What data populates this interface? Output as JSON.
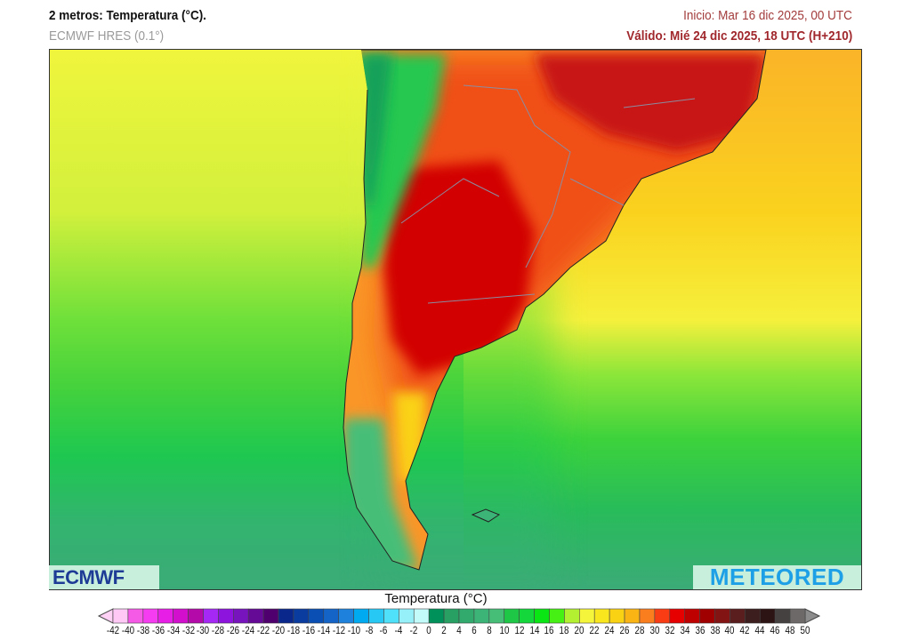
{
  "header": {
    "title": "2 metros: Temperatura (°C).",
    "model": "ECMWF HRES (0.1°)",
    "init": "Inicio: Mar 16 dic 2025, 00 UTC",
    "valid": "Válido: Mié 24 dic 2025, 18 UTC (H+210)"
  },
  "logos": {
    "left": "ECMWF",
    "right": "METEORED"
  },
  "colorbar": {
    "title": "Temperatura (°C)",
    "ticks": [
      "-42",
      "-40",
      "-38",
      "-36",
      "-34",
      "-32",
      "-30",
      "-28",
      "-26",
      "-24",
      "-22",
      "-20",
      "-18",
      "-16",
      "-14",
      "-12",
      "-10",
      "-8",
      "-6",
      "-4",
      "-2",
      "0",
      "2",
      "4",
      "6",
      "8",
      "10",
      "12",
      "14",
      "16",
      "18",
      "20",
      "22",
      "24",
      "26",
      "28",
      "30",
      "32",
      "34",
      "36",
      "38",
      "40",
      "42",
      "44",
      "46",
      "48",
      "50"
    ],
    "colors": [
      "#ffc8f5",
      "#f55ae6",
      "#f53cf0",
      "#e61ee6",
      "#d20fcd",
      "#b40aaa",
      "#a528f5",
      "#8c14dc",
      "#7814be",
      "#640a96",
      "#50006e",
      "#0a288c",
      "#0a3ca0",
      "#0a50b4",
      "#1464c8",
      "#1e82dc",
      "#00aaf0",
      "#28c8f5",
      "#50e1fa",
      "#96f0fa",
      "#c3fafa",
      "#00915a",
      "#28a064",
      "#32aa6e",
      "#3cb478",
      "#46be78",
      "#1ec846",
      "#14d73c",
      "#0ae614",
      "#46f014",
      "#b4f032",
      "#f5f53c",
      "#fae61e",
      "#fad214",
      "#fab414",
      "#fa7d1e",
      "#fa3c14",
      "#e60000",
      "#be0000",
      "#a00000",
      "#821414",
      "#5a1e1e",
      "#3c1e1e",
      "#2d1414",
      "#464141",
      "#6e6969"
    ],
    "under_color": "#ffd2f5",
    "over_color": "#8c8c8c"
  }
}
